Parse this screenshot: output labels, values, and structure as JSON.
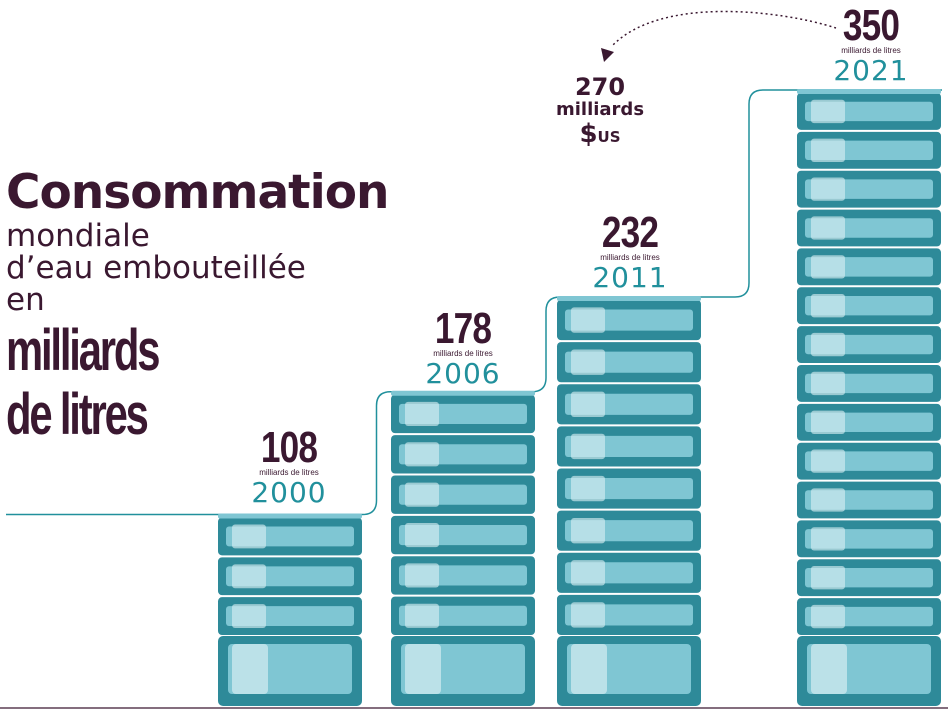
{
  "title": {
    "main": "Consommation",
    "line2": "mondiale",
    "line3": "d’eau embouteillée",
    "line4": "en",
    "unit_line1": "milliards",
    "unit_line2": "de litres"
  },
  "annotation": {
    "value": "270",
    "word": "milliards",
    "currency_symbol": "$",
    "currency_code": "US"
  },
  "chart_data": {
    "type": "bar",
    "categories": [
      "2000",
      "2006",
      "2011",
      "2021"
    ],
    "values": [
      108,
      178,
      232,
      350
    ],
    "value_labels": [
      "108",
      "178",
      "232",
      "350"
    ],
    "unit_label": "milliards de litres",
    "annotation": {
      "text": "270 milliards $US",
      "attached_to": "2021"
    }
  },
  "colors": {
    "bar_teal": "#2e8a99",
    "bar_light": "#7fc6d3",
    "highlight": "#d4ecf1",
    "line": "#21909c",
    "title_plum": "#3a1830",
    "year_teal": "#21909c"
  }
}
